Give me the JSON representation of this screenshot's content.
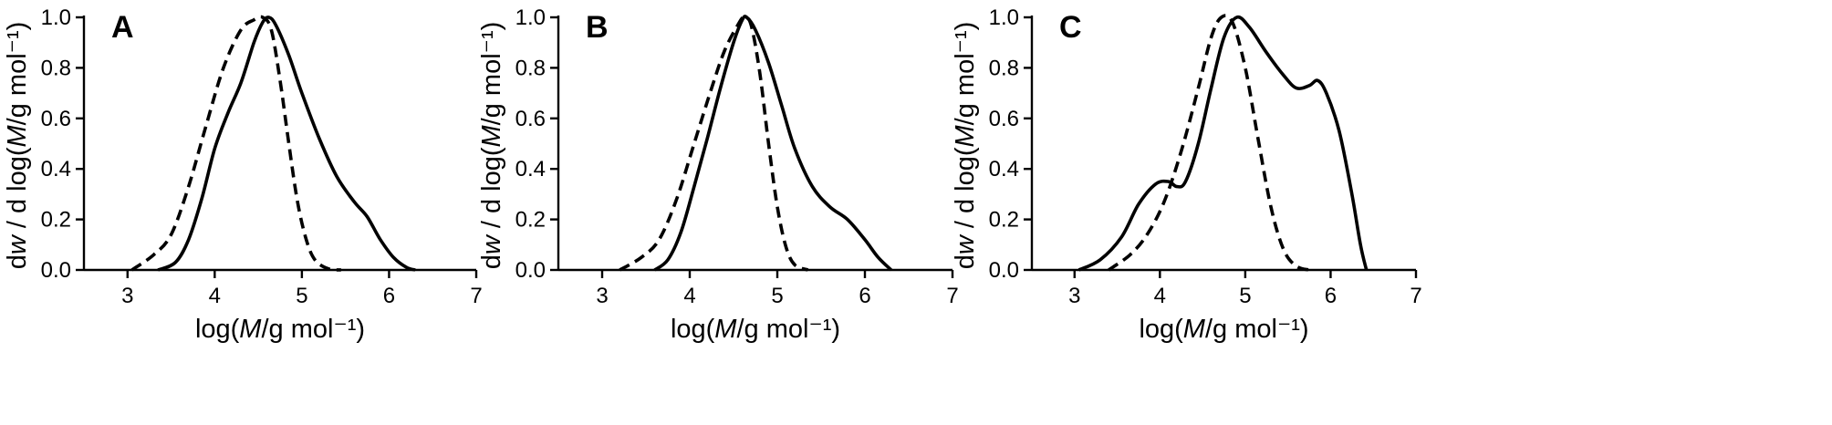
{
  "figure": {
    "panels": [
      {
        "letter": "A",
        "xlabel": "log(M/g mol⁻¹)",
        "ylabel": "dw / d log(M/g mol⁻¹)"
      },
      {
        "letter": "B",
        "xlabel": "log(M/g mol⁻¹)",
        "ylabel": "dw / d log(M/g mol⁻¹)"
      },
      {
        "letter": "C",
        "xlabel": "log(M/g mol⁻¹)",
        "ylabel": "dw / d log(M/g mol⁻¹)"
      }
    ]
  },
  "chart_data": [
    {
      "type": "line",
      "title": "A",
      "xlabel": "log(M/g mol⁻¹)",
      "ylabel": "dw / d log(M/g mol⁻¹)",
      "xlim": [
        2.5,
        7
      ],
      "ylim": [
        0,
        1.0
      ],
      "xticks": [
        3,
        4,
        5,
        6,
        7
      ],
      "yticks": [
        0.0,
        0.2,
        0.4,
        0.6,
        0.8,
        1.0
      ],
      "series": [
        {
          "style": "solid",
          "color": "#000000",
          "x": [
            3.35,
            3.55,
            3.7,
            3.85,
            4.0,
            4.15,
            4.3,
            4.45,
            4.55,
            4.62,
            4.7,
            4.85,
            5.0,
            5.2,
            5.4,
            5.6,
            5.75,
            5.9,
            6.05,
            6.2,
            6.3
          ],
          "y": [
            0.0,
            0.03,
            0.12,
            0.28,
            0.48,
            0.62,
            0.74,
            0.9,
            0.98,
            1.0,
            0.97,
            0.85,
            0.7,
            0.52,
            0.37,
            0.27,
            0.21,
            0.12,
            0.05,
            0.01,
            0.0
          ]
        },
        {
          "style": "dashed",
          "color": "#000000",
          "x": [
            3.05,
            3.3,
            3.5,
            3.7,
            3.9,
            4.1,
            4.3,
            4.45,
            4.55,
            4.65,
            4.75,
            4.85,
            4.95,
            5.05,
            5.15,
            5.3,
            5.45
          ],
          "y": [
            0.0,
            0.06,
            0.14,
            0.33,
            0.57,
            0.8,
            0.95,
            0.99,
            1.0,
            0.95,
            0.75,
            0.5,
            0.27,
            0.12,
            0.04,
            0.005,
            0.0
          ]
        }
      ]
    },
    {
      "type": "line",
      "title": "B",
      "xlabel": "log(M/g mol⁻¹)",
      "ylabel": "dw / d log(M/g mol⁻¹)",
      "xlim": [
        2.5,
        7
      ],
      "ylim": [
        0,
        1.0
      ],
      "xticks": [
        3,
        4,
        5,
        6,
        7
      ],
      "yticks": [
        0.0,
        0.2,
        0.4,
        0.6,
        0.8,
        1.0
      ],
      "series": [
        {
          "style": "solid",
          "color": "#000000",
          "x": [
            3.6,
            3.75,
            3.9,
            4.05,
            4.2,
            4.35,
            4.5,
            4.6,
            4.65,
            4.75,
            4.9,
            5.05,
            5.2,
            5.4,
            5.6,
            5.8,
            6.0,
            6.15,
            6.3
          ],
          "y": [
            0.0,
            0.04,
            0.15,
            0.33,
            0.52,
            0.72,
            0.9,
            0.99,
            1.0,
            0.95,
            0.82,
            0.65,
            0.48,
            0.33,
            0.25,
            0.2,
            0.12,
            0.05,
            0.0
          ]
        },
        {
          "style": "dashed",
          "color": "#000000",
          "x": [
            3.2,
            3.45,
            3.65,
            3.85,
            4.05,
            4.25,
            4.4,
            4.55,
            4.62,
            4.7,
            4.8,
            4.9,
            5.0,
            5.1,
            5.2,
            5.35
          ],
          "y": [
            0.0,
            0.05,
            0.12,
            0.28,
            0.5,
            0.72,
            0.87,
            0.97,
            1.0,
            0.97,
            0.78,
            0.5,
            0.25,
            0.09,
            0.02,
            0.0
          ]
        }
      ]
    },
    {
      "type": "line",
      "title": "C",
      "xlabel": "log(M/g mol⁻¹)",
      "ylabel": "dw / d log(M/g mol⁻¹)",
      "xlim": [
        2.5,
        7
      ],
      "ylim": [
        0,
        1.0
      ],
      "xticks": [
        3,
        4,
        5,
        6,
        7
      ],
      "yticks": [
        0.0,
        0.2,
        0.4,
        0.6,
        0.8,
        1.0
      ],
      "series": [
        {
          "style": "solid",
          "color": "#000000",
          "x": [
            3.05,
            3.3,
            3.55,
            3.75,
            3.95,
            4.1,
            4.2,
            4.3,
            4.45,
            4.6,
            4.75,
            4.9,
            5.05,
            5.25,
            5.45,
            5.6,
            5.75,
            5.85,
            5.95,
            6.1,
            6.25,
            6.35,
            6.42
          ],
          "y": [
            0.0,
            0.04,
            0.13,
            0.26,
            0.34,
            0.35,
            0.33,
            0.35,
            0.5,
            0.72,
            0.92,
            1.0,
            0.96,
            0.86,
            0.77,
            0.72,
            0.73,
            0.75,
            0.7,
            0.55,
            0.3,
            0.1,
            0.0
          ]
        },
        {
          "style": "dashed",
          "color": "#000000",
          "x": [
            3.4,
            3.65,
            3.85,
            4.05,
            4.25,
            4.45,
            4.6,
            4.72,
            4.85,
            5.0,
            5.15,
            5.3,
            5.45,
            5.6,
            5.75
          ],
          "y": [
            0.0,
            0.06,
            0.14,
            0.27,
            0.47,
            0.72,
            0.92,
            1.0,
            0.98,
            0.8,
            0.52,
            0.25,
            0.08,
            0.015,
            0.0
          ]
        }
      ]
    }
  ]
}
